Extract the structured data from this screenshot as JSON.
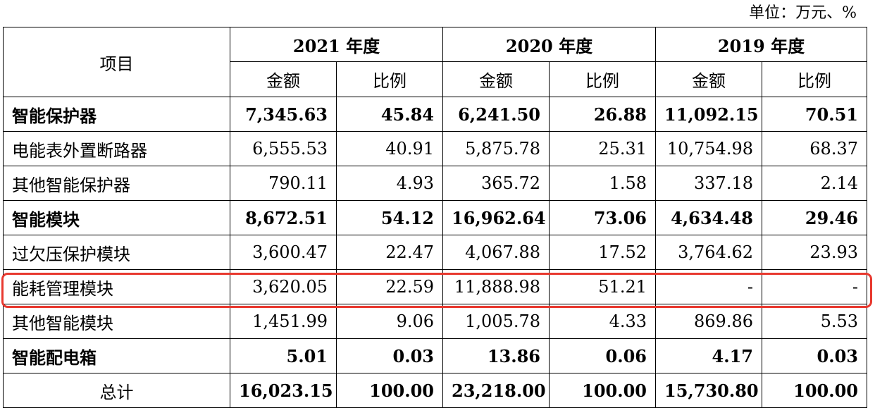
{
  "unit_note": "单位：万元、%",
  "header": {
    "item_label": "项目",
    "years": [
      "2021 年度",
      "2020 年度",
      "2019 年度"
    ],
    "amount_label": "金额",
    "ratio_label": "比例"
  },
  "rows": [
    {
      "name": "智能保护器",
      "bold": true,
      "v": [
        "7,345.63",
        "45.84",
        "6,241.50",
        "26.88",
        "11,092.15",
        "70.51"
      ]
    },
    {
      "name": "电能表外置断路器",
      "bold": false,
      "v": [
        "6,555.53",
        "40.91",
        "5,875.78",
        "25.31",
        "10,754.98",
        "68.37"
      ]
    },
    {
      "name": "其他智能保护器",
      "bold": false,
      "v": [
        "790.11",
        "4.93",
        "365.72",
        "1.58",
        "337.18",
        "2.14"
      ]
    },
    {
      "name": "智能模块",
      "bold": true,
      "v": [
        "8,672.51",
        "54.12",
        "16,962.64",
        "73.06",
        "4,634.48",
        "29.46"
      ]
    },
    {
      "name": "过欠压保护模块",
      "bold": false,
      "v": [
        "3,600.47",
        "22.47",
        "4,067.88",
        "17.52",
        "3,764.62",
        "23.93"
      ]
    },
    {
      "name": "能耗管理模块",
      "bold": false,
      "v": [
        "3,620.05",
        "22.59",
        "11,888.98",
        "51.21",
        "-",
        "-"
      ]
    },
    {
      "name": "其他智能模块",
      "bold": false,
      "v": [
        "1,451.99",
        "9.06",
        "1,005.78",
        "4.33",
        "869.86",
        "5.53"
      ]
    },
    {
      "name": "智能配电箱",
      "bold": true,
      "v": [
        "5.01",
        "0.03",
        "13.86",
        "0.06",
        "4.17",
        "0.03"
      ]
    },
    {
      "name": "总计",
      "bold": false,
      "total": true,
      "v": [
        "16,023.15",
        "100.00",
        "23,218.00",
        "100.00",
        "15,730.80",
        "100.00"
      ]
    }
  ],
  "highlight_color": "#e8392f"
}
